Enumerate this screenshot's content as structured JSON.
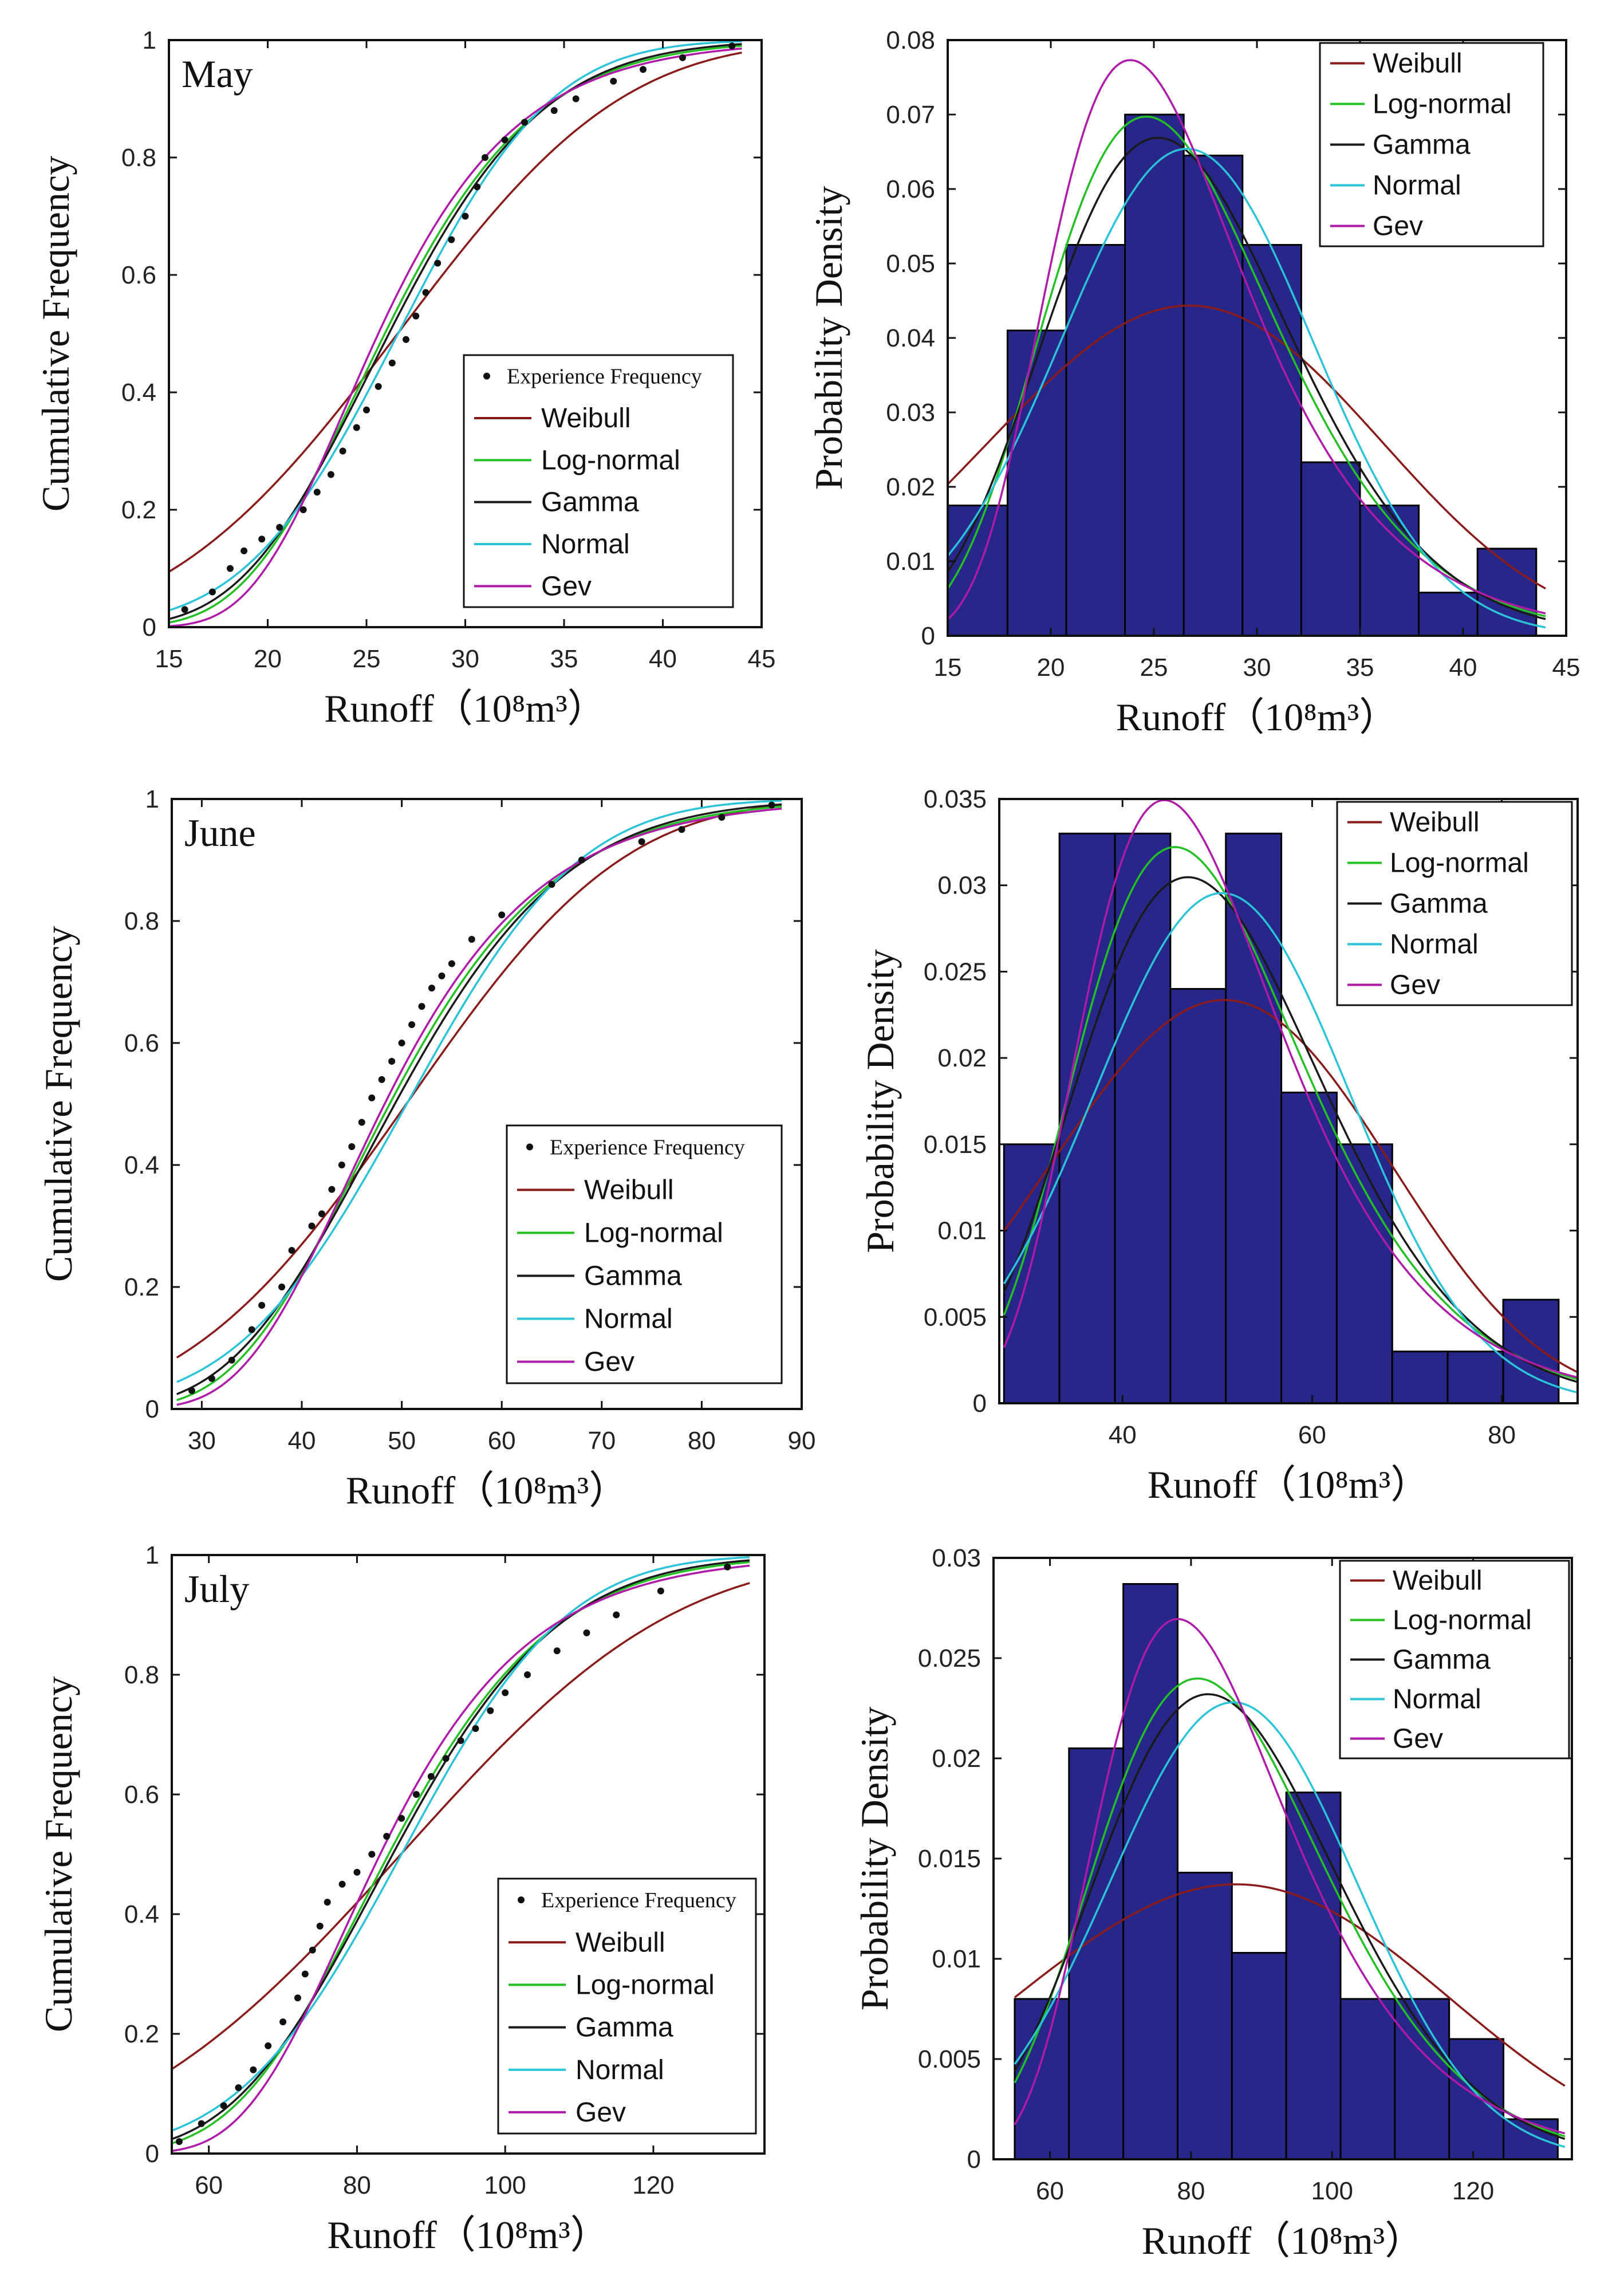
{
  "legend": {
    "points_label": "Experience Frequency",
    "distributions": [
      {
        "name": "Weibull",
        "color": "#8b1a1a"
      },
      {
        "name": "Log-normal",
        "color": "#22c022"
      },
      {
        "name": "Gamma",
        "color": "#1a1a1a"
      },
      {
        "name": "Normal",
        "color": "#2bc3d8"
      },
      {
        "name": "Gev",
        "color": "#b01aa8"
      }
    ]
  },
  "colors": {
    "bar_fill": "#27278a",
    "bar_edge": "#000000",
    "axis": "#111111",
    "points": "#111111"
  },
  "chart_data": [
    {
      "type": "scatter",
      "panel": "may-cdf",
      "title": "May",
      "xlabel": "Runoff（10⁸m³）",
      "ylabel": "Cumulative Frequency",
      "xlim": [
        15,
        45
      ],
      "ylim": [
        0,
        1
      ],
      "xticks": [
        15,
        20,
        25,
        30,
        35,
        40,
        45
      ],
      "yticks": [
        0,
        0.2,
        0.4,
        0.6,
        0.8,
        1
      ],
      "ytick_labels": [
        "0",
        "0.2",
        "0.4",
        "0.6",
        "0.8",
        "1"
      ],
      "points": [
        [
          15.8,
          0.03
        ],
        [
          17.2,
          0.06
        ],
        [
          18.1,
          0.1
        ],
        [
          18.8,
          0.13
        ],
        [
          19.7,
          0.15
        ],
        [
          20.6,
          0.17
        ],
        [
          21.8,
          0.2
        ],
        [
          22.5,
          0.23
        ],
        [
          23.2,
          0.26
        ],
        [
          23.8,
          0.3
        ],
        [
          24.5,
          0.34
        ],
        [
          25,
          0.37
        ],
        [
          25.6,
          0.41
        ],
        [
          26.3,
          0.45
        ],
        [
          27,
          0.49
        ],
        [
          27.5,
          0.53
        ],
        [
          28,
          0.57
        ],
        [
          28.6,
          0.62
        ],
        [
          29.3,
          0.66
        ],
        [
          30,
          0.7
        ],
        [
          30.6,
          0.75
        ],
        [
          31,
          0.8
        ],
        [
          32,
          0.83
        ],
        [
          33,
          0.86
        ],
        [
          34.5,
          0.88
        ],
        [
          35.6,
          0.9
        ],
        [
          37.5,
          0.93
        ],
        [
          39,
          0.95
        ],
        [
          41,
          0.97
        ],
        [
          43.5,
          0.99
        ]
      ],
      "dist": {
        "mean": 26.6,
        "sd": 6.1,
        "lo": 15,
        "hi": 44
      }
    },
    {
      "type": "bar",
      "panel": "may-pdf",
      "xlabel": "Runoff（10⁸m³）",
      "ylabel": "Probability Density",
      "xlim": [
        15,
        45
      ],
      "ylim": [
        0,
        0.08
      ],
      "xticks": [
        15,
        20,
        25,
        30,
        35,
        40,
        45
      ],
      "yticks": [
        0,
        0.01,
        0.02,
        0.03,
        0.04,
        0.05,
        0.06,
        0.07,
        0.08
      ],
      "ytick_labels": [
        "0",
        "0.01",
        "0.02",
        "0.03",
        "0.04",
        "0.05",
        "0.06",
        "0.07",
        "0.08"
      ],
      "bin_edges": [
        15,
        17.9,
        20.75,
        23.6,
        26.45,
        29.3,
        32.15,
        35,
        37.85,
        40.7,
        43.55
      ],
      "values": [
        0.0175,
        0.041,
        0.0525,
        0.07,
        0.0645,
        0.0525,
        0.0233,
        0.0175,
        0.0058,
        0.0117
      ],
      "dist": {
        "mean": 26.6,
        "sd": 6.1,
        "lo": 15,
        "hi": 44
      }
    },
    {
      "type": "scatter",
      "panel": "june-cdf",
      "title": "June",
      "xlabel": "Runoff（10⁸m³）",
      "ylabel": "Cumulative Frequency",
      "xlim": [
        27,
        90
      ],
      "ylim": [
        0,
        1
      ],
      "xticks": [
        30,
        40,
        50,
        60,
        70,
        80,
        90
      ],
      "yticks": [
        0,
        0.2,
        0.4,
        0.6,
        0.8,
        1
      ],
      "ytick_labels": [
        "0",
        "0.2",
        "0.4",
        "0.6",
        "0.8",
        "1"
      ],
      "points": [
        [
          29,
          0.03
        ],
        [
          31,
          0.05
        ],
        [
          33,
          0.08
        ],
        [
          35,
          0.13
        ],
        [
          36,
          0.17
        ],
        [
          38,
          0.2
        ],
        [
          39,
          0.26
        ],
        [
          41,
          0.3
        ],
        [
          42,
          0.32
        ],
        [
          43,
          0.36
        ],
        [
          44,
          0.4
        ],
        [
          45,
          0.43
        ],
        [
          46,
          0.47
        ],
        [
          47,
          0.51
        ],
        [
          48,
          0.54
        ],
        [
          49,
          0.57
        ],
        [
          50,
          0.6
        ],
        [
          51,
          0.63
        ],
        [
          52,
          0.66
        ],
        [
          53,
          0.69
        ],
        [
          54,
          0.71
        ],
        [
          55,
          0.73
        ],
        [
          57,
          0.77
        ],
        [
          60,
          0.81
        ],
        [
          65,
          0.86
        ],
        [
          68,
          0.9
        ],
        [
          74,
          0.93
        ],
        [
          78,
          0.95
        ],
        [
          82,
          0.97
        ],
        [
          87,
          0.99
        ]
      ],
      "dist": {
        "mean": 50.5,
        "sd": 13.5,
        "lo": 27.5,
        "hi": 88
      }
    },
    {
      "type": "bar",
      "panel": "june-pdf",
      "xlabel": "Runoff（10⁸m³）",
      "ylabel": "Probability Density",
      "xlim": [
        27,
        88
      ],
      "ylim": [
        0,
        0.035
      ],
      "xticks": [
        40,
        60,
        80
      ],
      "yticks": [
        0,
        0.005,
        0.01,
        0.015,
        0.02,
        0.025,
        0.03,
        0.035
      ],
      "ytick_labels": [
        "0",
        "0.005",
        "0.01",
        "0.015",
        "0.02",
        "0.025",
        "0.03",
        "0.035"
      ],
      "bin_edges": [
        27.5,
        33.35,
        39.2,
        45.05,
        50.9,
        56.75,
        62.6,
        68.45,
        74.3,
        80.15,
        86
      ],
      "values": [
        0.015,
        0.033,
        0.033,
        0.024,
        0.033,
        0.018,
        0.015,
        0.003,
        0.003,
        0.006
      ],
      "dist": {
        "mean": 50.5,
        "sd": 13.5,
        "lo": 27.5,
        "hi": 88
      }
    },
    {
      "type": "scatter",
      "panel": "july-cdf",
      "title": "July",
      "xlabel": "Runoff（10⁸m³）",
      "ylabel": "Cumulative Frequency",
      "xlim": [
        55,
        135
      ],
      "ylim": [
        0,
        1
      ],
      "xticks": [
        60,
        80,
        100,
        120
      ],
      "yticks": [
        0,
        0.2,
        0.4,
        0.6,
        0.8,
        1
      ],
      "ytick_labels": [
        "0",
        "0.2",
        "0.4",
        "0.6",
        "0.8",
        "1"
      ],
      "points": [
        [
          56,
          0.02
        ],
        [
          59,
          0.05
        ],
        [
          62,
          0.08
        ],
        [
          64,
          0.11
        ],
        [
          66,
          0.14
        ],
        [
          68,
          0.18
        ],
        [
          70,
          0.22
        ],
        [
          72,
          0.26
        ],
        [
          73,
          0.3
        ],
        [
          74,
          0.34
        ],
        [
          75,
          0.38
        ],
        [
          76,
          0.42
        ],
        [
          78,
          0.45
        ],
        [
          80,
          0.47
        ],
        [
          82,
          0.5
        ],
        [
          84,
          0.53
        ],
        [
          86,
          0.56
        ],
        [
          88,
          0.6
        ],
        [
          90,
          0.63
        ],
        [
          92,
          0.66
        ],
        [
          94,
          0.69
        ],
        [
          96,
          0.71
        ],
        [
          98,
          0.74
        ],
        [
          100,
          0.77
        ],
        [
          103,
          0.8
        ],
        [
          107,
          0.84
        ],
        [
          111,
          0.87
        ],
        [
          115,
          0.9
        ],
        [
          121,
          0.94
        ],
        [
          130,
          0.98
        ]
      ],
      "dist": {
        "mean": 86,
        "sd": 17.5,
        "lo": 55,
        "hi": 133
      }
    },
    {
      "type": "bar",
      "panel": "july-pdf",
      "xlabel": "Runoff（10⁸m³）",
      "ylabel": "Probability Density",
      "xlim": [
        52,
        134
      ],
      "ylim": [
        0,
        0.03
      ],
      "xticks": [
        60,
        80,
        100,
        120
      ],
      "yticks": [
        0,
        0.005,
        0.01,
        0.015,
        0.02,
        0.025,
        0.03
      ],
      "ytick_labels": [
        "0",
        "0.005",
        "0.01",
        "0.015",
        "0.02",
        "0.025",
        "0.03"
      ],
      "bin_edges": [
        55,
        62.7,
        70.4,
        78.1,
        85.8,
        93.5,
        101.2,
        108.9,
        116.6,
        124.3,
        132
      ],
      "values": [
        0.008,
        0.0205,
        0.0287,
        0.0143,
        0.0103,
        0.0183,
        0.008,
        0.008,
        0.006,
        0.002
      ],
      "dist": {
        "mean": 86,
        "sd": 17.5,
        "lo": 55,
        "hi": 133
      }
    }
  ]
}
